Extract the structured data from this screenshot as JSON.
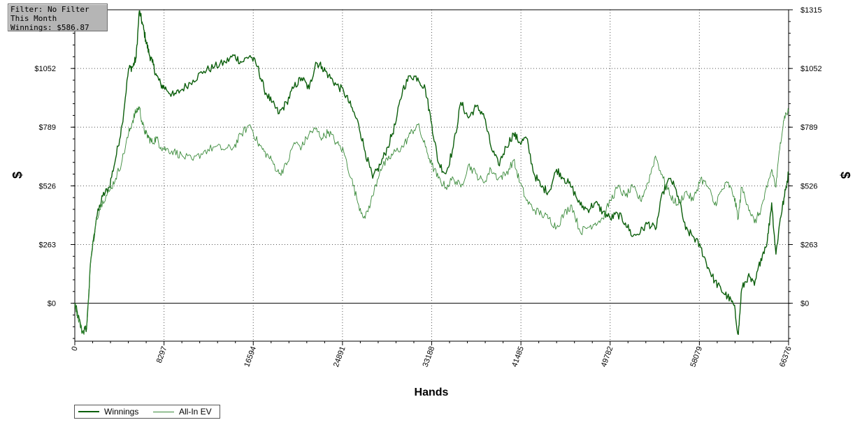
{
  "info": {
    "filter": "Filter: No Filter",
    "period": "This Month",
    "winnings": "Winnings: $586.87"
  },
  "chart_data": {
    "type": "line",
    "title": "",
    "xlabel": "Hands",
    "ylabel": "$",
    "xlim": [
      0,
      66376
    ],
    "ylim": [
      -170,
      1315
    ],
    "x_ticks": [
      "0",
      "8297",
      "16594",
      "24891",
      "33188",
      "41485",
      "49782",
      "58079",
      "66376"
    ],
    "y_ticks": [
      "$0",
      "$263",
      "$526",
      "$789",
      "$1052",
      "$1315"
    ],
    "grid": true,
    "legend": "bottom-left",
    "series": [
      {
        "name": "Winnings",
        "color": "#0b5e0b",
        "x": [
          0,
          300,
          700,
          1100,
          1500,
          2000,
          2600,
          3200,
          3800,
          4400,
          5000,
          5400,
          5700,
          6000,
          6300,
          6600,
          6900,
          7200,
          7600,
          8000,
          8500,
          9200,
          10000,
          11000,
          12000,
          13000,
          14000,
          14800,
          15500,
          16300,
          17000,
          17600,
          18300,
          19000,
          19700,
          20400,
          21100,
          21800,
          22400,
          23000,
          23600,
          24300,
          25000,
          25700,
          26400,
          27000,
          27700,
          28400,
          29100,
          29800,
          30500,
          31200,
          31900,
          32600,
          33200,
          33800,
          34500,
          35200,
          35900,
          36600,
          37300,
          38000,
          38700,
          39400,
          40100,
          40800,
          41400,
          42000,
          42700,
          43400,
          44100,
          44800,
          45500,
          46200,
          47000,
          47700,
          48400,
          49100,
          49800,
          50500,
          51200,
          51900,
          52600,
          53300,
          54000,
          54700,
          55400,
          56100,
          56800,
          57500,
          58200,
          58900,
          59500,
          60100,
          60700,
          61300,
          61700,
          62000,
          62600,
          63200,
          63800,
          64400,
          64800,
          65200,
          65600,
          66000,
          66376
        ],
        "y": [
          0,
          -60,
          -130,
          -110,
          200,
          380,
          480,
          520,
          650,
          800,
          1050,
          1060,
          1100,
          1310,
          1250,
          1180,
          1120,
          1080,
          1020,
          980,
          960,
          930,
          960,
          1000,
          1040,
          1060,
          1080,
          1110,
          1080,
          1110,
          1060,
          960,
          900,
          850,
          900,
          970,
          1010,
          960,
          1080,
          1060,
          1020,
          980,
          950,
          880,
          800,
          680,
          560,
          620,
          700,
          800,
          960,
          1020,
          1010,
          960,
          800,
          630,
          580,
          700,
          900,
          830,
          880,
          850,
          700,
          620,
          700,
          760,
          720,
          740,
          580,
          520,
          500,
          600,
          560,
          520,
          440,
          420,
          450,
          410,
          380,
          400,
          360,
          300,
          320,
          360,
          330,
          500,
          560,
          480,
          330,
          300,
          250,
          160,
          100,
          60,
          30,
          -10,
          -140,
          60,
          120,
          80,
          200,
          280,
          450,
          220,
          380,
          480,
          586
        ]
      },
      {
        "name": "All-In EV",
        "color": "#3a8a3a",
        "x": [
          0,
          300,
          700,
          1100,
          1500,
          2000,
          2600,
          3200,
          3800,
          4400,
          5000,
          5400,
          5700,
          6000,
          6300,
          6600,
          6900,
          7200,
          7600,
          8000,
          8500,
          9200,
          10000,
          11000,
          12000,
          13000,
          14000,
          14800,
          15500,
          16300,
          17000,
          17600,
          18300,
          19000,
          19700,
          20400,
          21100,
          21800,
          22400,
          23000,
          23600,
          24300,
          25000,
          25700,
          26400,
          27000,
          27700,
          28400,
          29100,
          29800,
          30500,
          31200,
          31900,
          32600,
          33200,
          33800,
          34500,
          35200,
          35900,
          36600,
          37300,
          38000,
          38700,
          39400,
          40100,
          40800,
          41400,
          42000,
          42700,
          43400,
          44100,
          44800,
          45500,
          46200,
          47000,
          47700,
          48400,
          49100,
          49800,
          50500,
          51200,
          51900,
          52600,
          53300,
          54000,
          54700,
          55400,
          56100,
          56800,
          57500,
          58200,
          58900,
          59500,
          60100,
          60700,
          61300,
          61700,
          62000,
          62600,
          63200,
          63800,
          64400,
          64800,
          65200,
          65600,
          66000,
          66376
        ],
        "y": [
          0,
          -60,
          -130,
          -110,
          200,
          380,
          460,
          500,
          560,
          640,
          760,
          820,
          860,
          880,
          800,
          760,
          740,
          720,
          740,
          700,
          690,
          680,
          660,
          640,
          680,
          700,
          690,
          700,
          760,
          800,
          720,
          680,
          640,
          580,
          620,
          720,
          700,
          760,
          780,
          740,
          770,
          720,
          680,
          560,
          440,
          380,
          480,
          600,
          640,
          680,
          700,
          760,
          800,
          700,
          620,
          560,
          520,
          560,
          520,
          620,
          580,
          540,
          600,
          560,
          580,
          640,
          540,
          460,
          420,
          400,
          380,
          340,
          400,
          440,
          320,
          340,
          360,
          380,
          460,
          520,
          480,
          520,
          460,
          540,
          660,
          560,
          480,
          440,
          500,
          460,
          560,
          520,
          440,
          500,
          540,
          480,
          380,
          520,
          440,
          360,
          420,
          520,
          600,
          520,
          720,
          840,
          860
        ]
      }
    ]
  }
}
